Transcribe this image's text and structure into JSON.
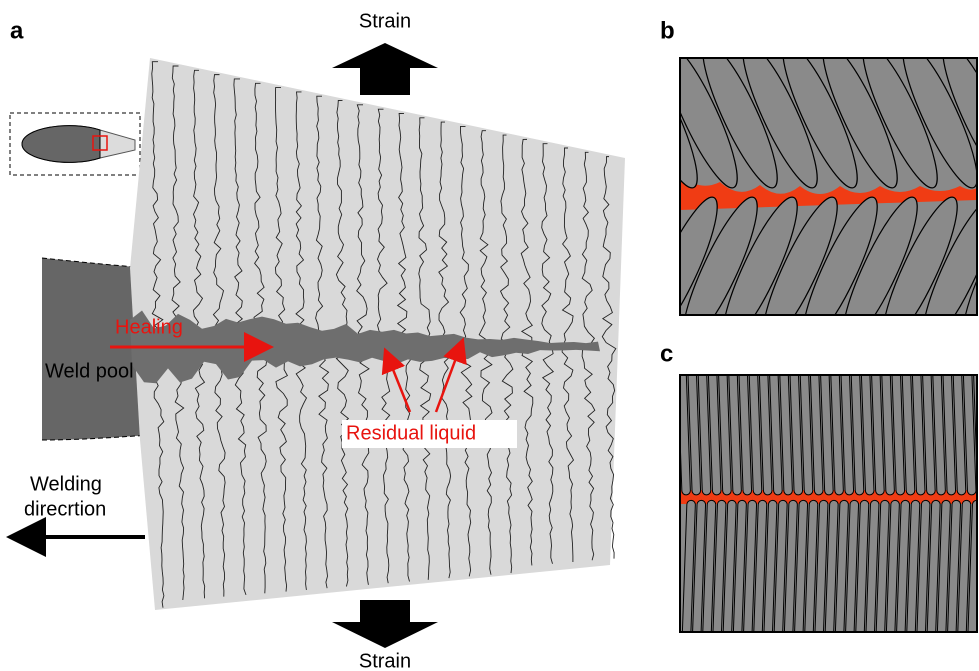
{
  "panels": {
    "a": {
      "label": "a",
      "annotations": {
        "strain_top": "Strain",
        "strain_bottom": "Strain",
        "healing": "Healing",
        "weld_pool": "Weld pool",
        "residual_liquid": "Residual liquid",
        "welding_direction": [
          "Welding",
          "direcrtion"
        ]
      }
    },
    "b": {
      "label": "b"
    },
    "c": {
      "label": "c"
    }
  }
}
